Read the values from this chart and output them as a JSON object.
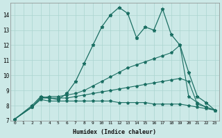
{
  "xlabel": "Humidex (Indice chaleur)",
  "background_color": "#cce9e7",
  "grid_color": "#aad4d0",
  "line_color": "#1a6e62",
  "xlim": [
    -0.5,
    23.5
  ],
  "ylim": [
    7,
    14.8
  ],
  "yticks": [
    7,
    8,
    9,
    10,
    11,
    12,
    13,
    14
  ],
  "xticks": [
    0,
    1,
    2,
    3,
    4,
    5,
    6,
    7,
    8,
    9,
    10,
    11,
    12,
    13,
    14,
    15,
    16,
    17,
    18,
    19,
    20,
    21,
    22,
    23
  ],
  "line1_x": [
    0,
    2,
    3,
    4,
    5,
    6,
    7,
    8,
    9,
    10,
    11,
    12,
    13,
    14,
    15,
    16,
    17,
    18,
    19,
    20,
    21,
    22,
    23
  ],
  "line1_y": [
    7.1,
    8.0,
    8.6,
    8.5,
    8.4,
    8.8,
    9.6,
    10.8,
    12.0,
    13.2,
    14.0,
    14.5,
    14.1,
    12.5,
    13.2,
    13.0,
    14.4,
    12.7,
    12.0,
    10.2,
    8.6,
    8.2,
    7.7
  ],
  "line2_x": [
    0,
    2,
    3,
    4,
    5,
    6,
    7,
    8,
    9,
    10,
    11,
    12,
    13,
    14,
    15,
    16,
    17,
    18,
    19,
    20,
    21,
    22,
    23
  ],
  "line2_y": [
    7.1,
    7.9,
    8.5,
    8.6,
    8.6,
    8.7,
    8.8,
    9.0,
    9.3,
    9.6,
    9.9,
    10.2,
    10.5,
    10.7,
    10.9,
    11.1,
    11.3,
    11.5,
    12.0,
    8.6,
    8.2,
    7.9,
    7.7
  ],
  "line3_x": [
    0,
    2,
    3,
    4,
    5,
    6,
    7,
    8,
    9,
    10,
    11,
    12,
    13,
    14,
    15,
    16,
    17,
    18,
    19,
    20,
    21,
    22,
    23
  ],
  "line3_y": [
    7.1,
    7.9,
    8.5,
    8.5,
    8.5,
    8.5,
    8.6,
    8.7,
    8.8,
    8.9,
    9.0,
    9.1,
    9.2,
    9.3,
    9.4,
    9.5,
    9.6,
    9.7,
    9.8,
    9.6,
    8.1,
    7.9,
    7.7
  ],
  "line4_x": [
    0,
    2,
    3,
    4,
    5,
    6,
    7,
    8,
    9,
    10,
    11,
    12,
    13,
    14,
    15,
    16,
    17,
    18,
    19,
    20,
    21,
    22,
    23
  ],
  "line4_y": [
    7.1,
    7.9,
    8.4,
    8.3,
    8.3,
    8.3,
    8.3,
    8.3,
    8.3,
    8.3,
    8.3,
    8.2,
    8.2,
    8.2,
    8.2,
    8.1,
    8.1,
    8.1,
    8.1,
    8.0,
    7.9,
    7.8,
    7.7
  ]
}
